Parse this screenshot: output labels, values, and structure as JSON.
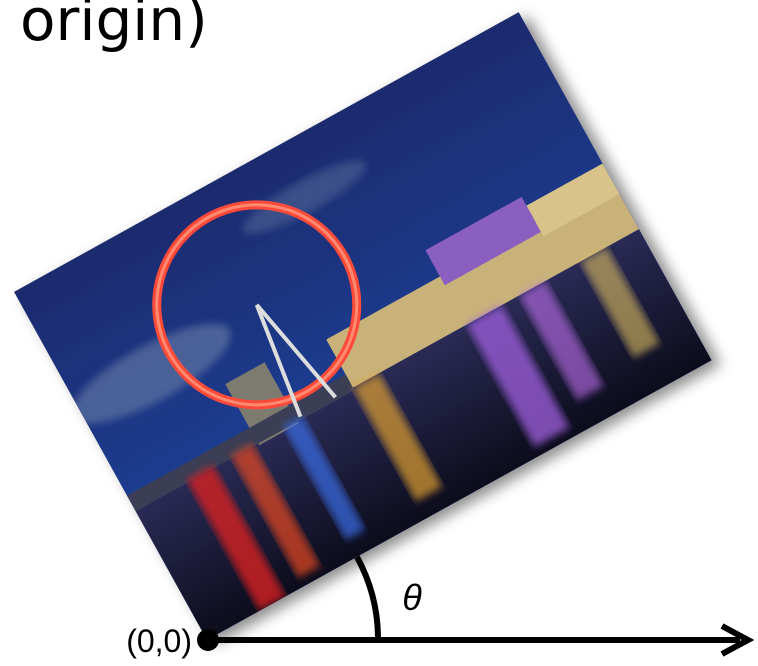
{
  "header": {
    "title": "origin)"
  },
  "labels": {
    "angle": "θ",
    "origin": "(0,0)"
  }
}
